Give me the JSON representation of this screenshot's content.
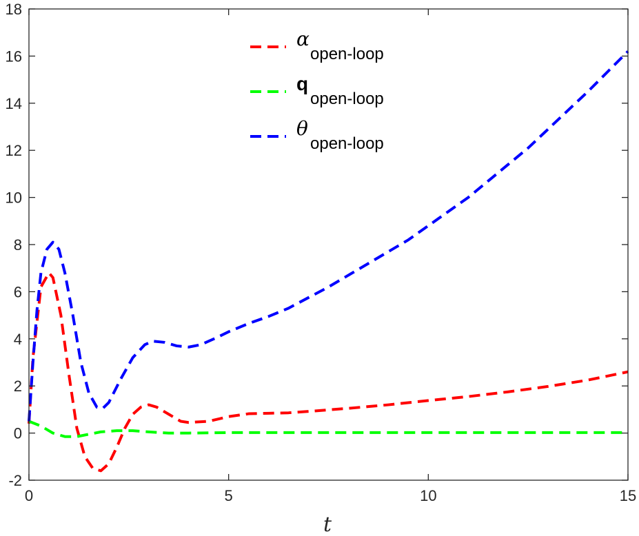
{
  "chart_data": {
    "type": "line",
    "xlabel": "t",
    "ylabel": "",
    "xlim": [
      0,
      15
    ],
    "ylim": [
      -2,
      18
    ],
    "xticks": [
      0,
      5,
      10,
      15
    ],
    "yticks": [
      -2,
      0,
      2,
      4,
      6,
      8,
      10,
      12,
      14,
      16,
      18
    ],
    "grid": false,
    "legend_position": "top-center",
    "series": [
      {
        "name": "α_open-loop",
        "symbol": "α",
        "subscript": "open-loop",
        "color": "#ff0000",
        "style": "dashed",
        "points": [
          [
            0,
            0.4
          ],
          [
            0.1,
            3.2
          ],
          [
            0.3,
            6.2
          ],
          [
            0.5,
            6.8
          ],
          [
            0.6,
            6.6
          ],
          [
            0.8,
            5.0
          ],
          [
            1.0,
            2.5
          ],
          [
            1.2,
            0.2
          ],
          [
            1.4,
            -1.0
          ],
          [
            1.6,
            -1.5
          ],
          [
            1.8,
            -1.6
          ],
          [
            2.0,
            -1.3
          ],
          [
            2.2,
            -0.6
          ],
          [
            2.4,
            0.2
          ],
          [
            2.6,
            0.8
          ],
          [
            2.8,
            1.1
          ],
          [
            3.0,
            1.2
          ],
          [
            3.2,
            1.1
          ],
          [
            3.5,
            0.8
          ],
          [
            3.8,
            0.5
          ],
          [
            4.0,
            0.45
          ],
          [
            4.5,
            0.5
          ],
          [
            5.0,
            0.7
          ],
          [
            5.5,
            0.82
          ],
          [
            6.0,
            0.84
          ],
          [
            6.5,
            0.86
          ],
          [
            7.0,
            0.92
          ],
          [
            8.0,
            1.05
          ],
          [
            9.0,
            1.2
          ],
          [
            10.0,
            1.38
          ],
          [
            11.0,
            1.55
          ],
          [
            12.0,
            1.75
          ],
          [
            13.0,
            1.98
          ],
          [
            14.0,
            2.25
          ],
          [
            15.0,
            2.6
          ]
        ]
      },
      {
        "name": "q_open-loop",
        "symbol": "q",
        "subscript": "open-loop",
        "color": "#00ff00",
        "style": "dashed",
        "points": [
          [
            0,
            0.5
          ],
          [
            0.3,
            0.3
          ],
          [
            0.6,
            0.0
          ],
          [
            0.9,
            -0.15
          ],
          [
            1.2,
            -0.15
          ],
          [
            1.5,
            -0.05
          ],
          [
            1.8,
            0.05
          ],
          [
            2.2,
            0.1
          ],
          [
            2.6,
            0.1
          ],
          [
            3.0,
            0.05
          ],
          [
            3.5,
            0.0
          ],
          [
            4.0,
            0.0
          ],
          [
            5.0,
            0.02
          ],
          [
            6.0,
            0.02
          ],
          [
            8.0,
            0.02
          ],
          [
            10.0,
            0.02
          ],
          [
            12.0,
            0.02
          ],
          [
            15.0,
            0.02
          ]
        ]
      },
      {
        "name": "θ_open-loop",
        "symbol": "θ",
        "subscript": "open-loop",
        "color": "#0000ff",
        "style": "dashed",
        "points": [
          [
            0,
            0.5
          ],
          [
            0.1,
            3.0
          ],
          [
            0.2,
            5.2
          ],
          [
            0.3,
            6.8
          ],
          [
            0.45,
            7.8
          ],
          [
            0.6,
            8.1
          ],
          [
            0.75,
            7.8
          ],
          [
            0.9,
            6.8
          ],
          [
            1.1,
            5.0
          ],
          [
            1.3,
            3.0
          ],
          [
            1.5,
            1.7
          ],
          [
            1.7,
            1.1
          ],
          [
            1.85,
            1.05
          ],
          [
            2.0,
            1.3
          ],
          [
            2.3,
            2.3
          ],
          [
            2.6,
            3.2
          ],
          [
            2.9,
            3.75
          ],
          [
            3.1,
            3.9
          ],
          [
            3.4,
            3.85
          ],
          [
            3.7,
            3.7
          ],
          [
            4.0,
            3.65
          ],
          [
            4.3,
            3.75
          ],
          [
            4.7,
            4.05
          ],
          [
            5.0,
            4.3
          ],
          [
            5.5,
            4.65
          ],
          [
            6.0,
            4.95
          ],
          [
            6.5,
            5.3
          ],
          [
            7.0,
            5.75
          ],
          [
            7.5,
            6.2
          ],
          [
            8.0,
            6.7
          ],
          [
            8.5,
            7.2
          ],
          [
            9.0,
            7.7
          ],
          [
            9.5,
            8.2
          ],
          [
            10.0,
            8.8
          ],
          [
            10.5,
            9.4
          ],
          [
            11.0,
            10.0
          ],
          [
            11.5,
            10.7
          ],
          [
            12.0,
            11.4
          ],
          [
            12.5,
            12.1
          ],
          [
            13.0,
            12.9
          ],
          [
            13.5,
            13.7
          ],
          [
            14.0,
            14.5
          ],
          [
            14.5,
            15.35
          ],
          [
            15.0,
            16.2
          ]
        ]
      }
    ]
  }
}
